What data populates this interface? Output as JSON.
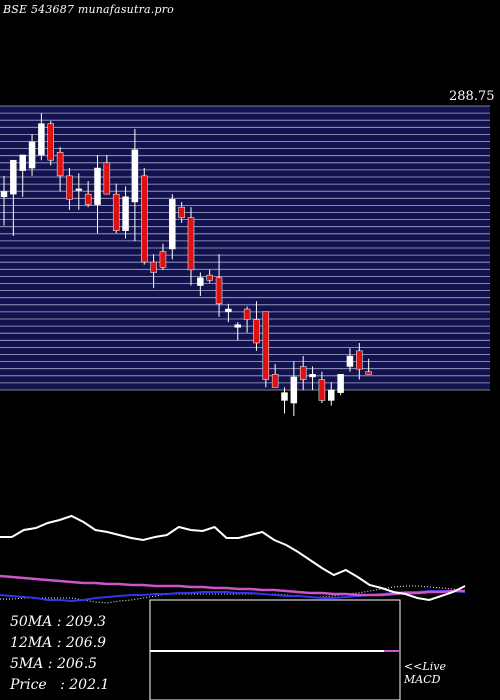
{
  "header": {
    "text": "BSE 543687 munafasutra.pro"
  },
  "stats": [
    {
      "label": "50MA",
      "value": "209.3",
      "sep": " : "
    },
    {
      "label": "12MA",
      "value": "206.9",
      "sep": " : "
    },
    {
      "label": "5MA",
      "value": "206.5",
      "sep": " : "
    },
    {
      "label": "Price",
      "value": "202.1",
      "sep": "   : "
    }
  ],
  "live_label": "<<Live",
  "macd_label": "MACD",
  "colors": {
    "panel": "#12124e",
    "grid": "#c8c8e6",
    "up": "#ffffff",
    "down": "#dd1111",
    "ma_line": "#ffffff",
    "ma_pink": "#cc55cc",
    "ma_blue": "#3333ee"
  },
  "chart_data": {
    "type": "candlestick",
    "top_price_label": "288.75",
    "ylim": [
      180,
      288.75
    ],
    "candles": [
      {
        "o": 254,
        "h": 262,
        "l": 243,
        "c": 256
      },
      {
        "o": 255,
        "h": 268,
        "l": 239,
        "c": 268
      },
      {
        "o": 264,
        "h": 270,
        "l": 254,
        "c": 270
      },
      {
        "o": 265,
        "h": 278,
        "l": 262,
        "c": 275
      },
      {
        "o": 270,
        "h": 286,
        "l": 268,
        "c": 282
      },
      {
        "o": 282,
        "h": 283,
        "l": 266,
        "c": 268
      },
      {
        "o": 271,
        "h": 273,
        "l": 256,
        "c": 262
      },
      {
        "o": 262,
        "h": 265,
        "l": 249,
        "c": 253
      },
      {
        "o": 257,
        "h": 263,
        "l": 249,
        "c": 257
      },
      {
        "o": 255,
        "h": 260,
        "l": 250,
        "c": 251
      },
      {
        "o": 251,
        "h": 270,
        "l": 240,
        "c": 265
      },
      {
        "o": 267,
        "h": 270,
        "l": 255,
        "c": 255
      },
      {
        "o": 255,
        "h": 259,
        "l": 240,
        "c": 241
      },
      {
        "o": 241,
        "h": 258,
        "l": 238,
        "c": 254
      },
      {
        "o": 252,
        "h": 280,
        "l": 237,
        "c": 272
      },
      {
        "o": 262,
        "h": 265,
        "l": 228,
        "c": 229
      },
      {
        "o": 229,
        "h": 232,
        "l": 219,
        "c": 225
      },
      {
        "o": 233,
        "h": 236,
        "l": 226,
        "c": 227
      },
      {
        "o": 234,
        "h": 255,
        "l": 230,
        "c": 253
      },
      {
        "o": 250,
        "h": 252,
        "l": 244,
        "c": 246
      },
      {
        "o": 246,
        "h": 250,
        "l": 220,
        "c": 226
      },
      {
        "o": 220,
        "h": 225,
        "l": 216,
        "c": 223
      },
      {
        "o": 224,
        "h": 226,
        "l": 221,
        "c": 222
      },
      {
        "o": 223,
        "h": 232,
        "l": 208,
        "c": 213
      },
      {
        "o": 210,
        "h": 213,
        "l": 206,
        "c": 211
      },
      {
        "o": 204,
        "h": 206,
        "l": 199,
        "c": 205
      },
      {
        "o": 211,
        "h": 212,
        "l": 202,
        "c": 207
      },
      {
        "o": 207,
        "h": 214,
        "l": 195,
        "c": 198
      },
      {
        "o": 210,
        "h": 210,
        "l": 181,
        "c": 184
      },
      {
        "o": 186,
        "h": 190,
        "l": 181,
        "c": 181
      },
      {
        "o": 176,
        "h": 181,
        "l": 171,
        "c": 179
      },
      {
        "o": 175,
        "h": 191,
        "l": 170,
        "c": 185
      },
      {
        "o": 189,
        "h": 193,
        "l": 180,
        "c": 184
      },
      {
        "o": 185,
        "h": 189,
        "l": 180,
        "c": 186
      },
      {
        "o": 184,
        "h": 187,
        "l": 175,
        "c": 176
      },
      {
        "o": 176,
        "h": 183,
        "l": 174,
        "c": 180
      },
      {
        "o": 179,
        "h": 186,
        "l": 178,
        "c": 186
      },
      {
        "o": 189,
        "h": 196,
        "l": 187,
        "c": 193
      },
      {
        "o": 195,
        "h": 198,
        "l": 184,
        "c": 188
      },
      {
        "o": 187,
        "h": 192,
        "l": 186,
        "c": 186
      }
    ],
    "indicators": {
      "white_line": [
        537,
        537,
        530,
        528,
        523,
        520,
        516,
        522,
        530,
        532,
        535,
        538,
        540,
        537,
        535,
        527,
        530,
        531,
        527,
        538,
        538,
        535,
        532,
        540,
        545,
        552,
        560,
        568,
        575,
        570,
        577,
        585,
        588,
        592,
        594,
        598,
        600,
        596,
        592,
        586
      ],
      "pink_line": [
        576,
        577,
        578,
        579,
        580,
        581,
        582,
        583,
        583,
        584,
        584,
        585,
        585,
        586,
        586,
        586,
        587,
        587,
        588,
        588,
        589,
        589,
        590,
        590,
        591,
        592,
        593,
        593,
        594,
        594,
        595,
        595,
        595,
        594,
        593,
        593,
        592,
        592,
        591,
        591
      ],
      "blue_line": [
        595,
        596,
        597,
        598,
        600,
        600,
        601,
        600,
        598,
        597,
        596,
        595,
        595,
        594,
        594,
        593,
        593,
        592,
        592,
        592,
        593,
        593,
        594,
        595,
        596,
        596,
        597,
        598,
        598,
        597,
        596,
        595,
        594,
        593,
        592,
        592,
        591,
        591,
        591,
        592
      ],
      "dotted_line": [
        599,
        599,
        598,
        598,
        598,
        598,
        598,
        600,
        602,
        603,
        601,
        600,
        598,
        596,
        594,
        594,
        594,
        594,
        594,
        594,
        594,
        594,
        594,
        594,
        595,
        596,
        597,
        597,
        596,
        594,
        593,
        591,
        589,
        587,
        586,
        586,
        587,
        588,
        589,
        591
      ]
    }
  }
}
